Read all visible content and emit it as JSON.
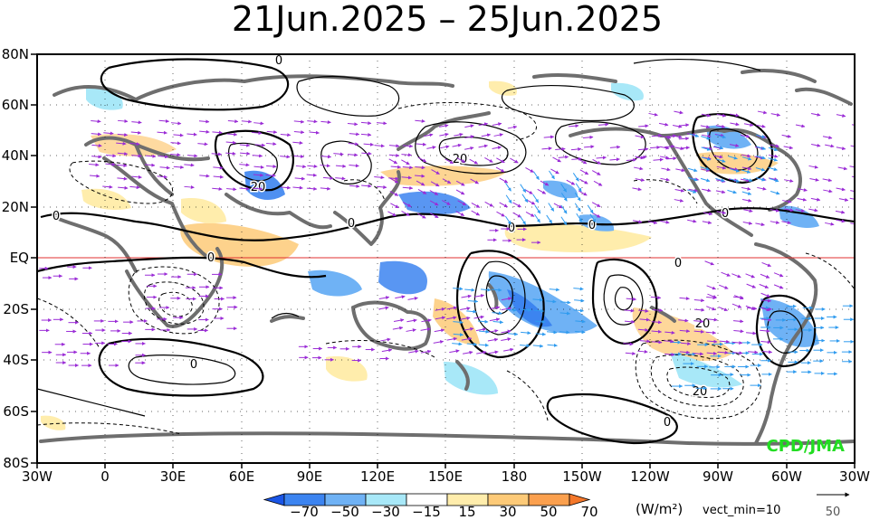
{
  "title": "21Jun.2025  –  25Jun.2025",
  "credit": "CPD/JMA",
  "lat_labels": [
    "80N",
    "60N",
    "40N",
    "20N",
    "EQ",
    "20S",
    "40S",
    "60S",
    "80S"
  ],
  "lon_labels": [
    "30W",
    "0",
    "30E",
    "60E",
    "90E",
    "120E",
    "150E",
    "180",
    "150W",
    "120W",
    "90W",
    "60W",
    "30W"
  ],
  "colorbar": {
    "ticks": [
      "−70",
      "−50",
      "−30",
      "−15",
      "15",
      "30",
      "50",
      "70"
    ],
    "unit": "(W/m²)",
    "note": "vect_min=10",
    "colors": [
      "#1a55e6",
      "#3c84f0",
      "#6fb2f5",
      "#a8e8f8",
      "#ffffff",
      "#ffedac",
      "#fdca78",
      "#fba04e",
      "#f4772a"
    ]
  },
  "reference_vector": {
    "value": "50"
  },
  "contour_labels": [
    "0",
    "0",
    "0",
    "0",
    "0",
    "0",
    "0",
    "0",
    "0",
    "0",
    "20",
    "20",
    "20",
    "20"
  ],
  "colors": {
    "coast": "#6e6e6e",
    "vector_purple": "#9a2bd6",
    "vector_blue": "#2f9bef",
    "vector_teal": "#2fc4c4",
    "equator": "#e03030",
    "credit": "#22dd22"
  }
}
